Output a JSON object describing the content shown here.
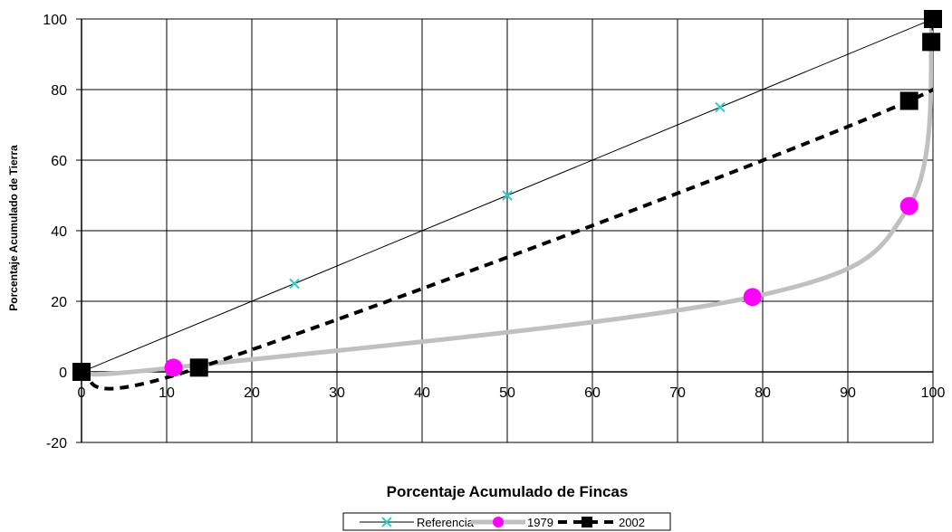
{
  "chart_data": {
    "type": "line",
    "title": "",
    "xlabel": "Porcentaje Acumulado de Fincas",
    "ylabel": "Porcentaje Acumulado de Tierra",
    "xlim": [
      0,
      100
    ],
    "ylim": [
      -20,
      100
    ],
    "x_ticks": [
      0,
      10,
      20,
      30,
      40,
      50,
      60,
      70,
      80,
      90,
      100
    ],
    "y_ticks": [
      -20,
      0,
      20,
      40,
      60,
      80,
      100
    ],
    "grid": true,
    "legend_position": "bottom",
    "series": [
      {
        "name": "Referencia",
        "color": "#000000",
        "marker": "x",
        "marker_color": "#33CCCC",
        "points": [
          [
            0,
            0
          ],
          [
            25,
            25
          ],
          [
            50,
            50
          ],
          [
            75,
            75
          ],
          [
            100,
            100
          ]
        ]
      },
      {
        "name": "1979",
        "color": "#C0C0C0",
        "marker": "circle",
        "marker_color": "#FF00FF",
        "points": [
          [
            0,
            0
          ],
          [
            10.8,
            1.2
          ],
          [
            78.8,
            21.2
          ],
          [
            97.2,
            47.0
          ],
          [
            99.9,
            100
          ]
        ]
      },
      {
        "name": "2002",
        "color": "#000000",
        "marker": "square",
        "marker_color": "#000000",
        "points": [
          [
            0,
            0
          ],
          [
            13.8,
            1.2
          ],
          [
            97.2,
            76.8
          ],
          [
            99.8,
            93.5
          ],
          [
            100,
            100
          ]
        ]
      }
    ]
  }
}
